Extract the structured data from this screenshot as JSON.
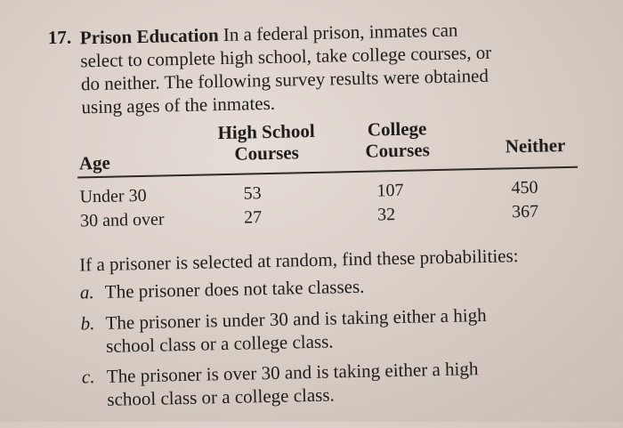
{
  "problem": {
    "number": "17.",
    "title": "Prison Education",
    "intro_lines": [
      "In a federal prison, inmates can",
      "select to complete high school, take college courses, or",
      "do neither. The following survey results were obtained",
      "using ages of the inmates."
    ]
  },
  "table": {
    "headers": {
      "age": "Age",
      "high_school_line1": "High School",
      "high_school_line2": "Courses",
      "college_line1": "College",
      "college_line2": "Courses",
      "neither": "Neither"
    },
    "rows": [
      {
        "age": "Under 30",
        "high_school": "53",
        "college": "107",
        "neither": "450"
      },
      {
        "age": "30 and over",
        "high_school": "27",
        "college": "32",
        "neither": "367"
      }
    ]
  },
  "question": "If a prisoner is selected at random, find these probabilities:",
  "items": [
    {
      "letter": "a.",
      "lines": [
        "The prisoner does not take classes."
      ]
    },
    {
      "letter": "b.",
      "lines": [
        "The prisoner is under 30 and is taking either a high",
        "school class or a college class."
      ]
    },
    {
      "letter": "c.",
      "lines": [
        "The prisoner is over 30 and is taking either a high",
        "school class or a college class."
      ]
    }
  ]
}
